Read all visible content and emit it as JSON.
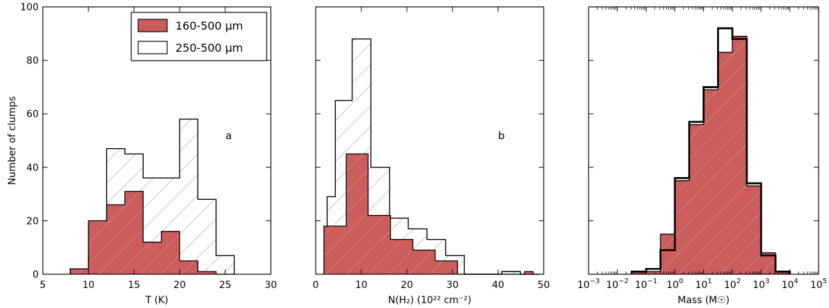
{
  "chart_data": [
    {
      "type": "histogram",
      "panel_label": "a",
      "xlabel": "T (K)",
      "ylabel": "Number of clumps",
      "xlim": [
        5,
        30
      ],
      "ylim": [
        0,
        100
      ],
      "xticks": [
        5,
        10,
        15,
        20,
        25,
        30
      ],
      "yticks": [
        0,
        20,
        40,
        60,
        80,
        100
      ],
      "legend": {
        "position": "top-right",
        "entries": [
          "160-500 μm",
          "250-500 μm"
        ]
      },
      "series": [
        {
          "name": "250-500 μm",
          "style": "hatched-outline",
          "bin_edges": [
            8,
            10,
            12,
            14,
            16,
            18,
            20,
            22,
            24,
            26
          ],
          "values": [
            2,
            7,
            47,
            45,
            36,
            36,
            58,
            28,
            7
          ]
        },
        {
          "name": "160-500 μm",
          "style": "filled",
          "color": "#cd5c5c",
          "bin_edges": [
            8,
            10,
            12,
            14,
            16,
            18,
            20,
            22,
            24,
            26
          ],
          "values": [
            2,
            20,
            26,
            31,
            12,
            16,
            5,
            1,
            0
          ]
        }
      ]
    },
    {
      "type": "histogram",
      "panel_label": "b",
      "xlabel": "N(H₂) (10²² cm⁻²)",
      "ylabel": "",
      "xlim": [
        0,
        50
      ],
      "ylim": [
        0,
        100
      ],
      "xticks": [
        0,
        10,
        20,
        30,
        40,
        50
      ],
      "series": [
        {
          "name": "250-500 μm",
          "style": "hatched-outline",
          "bin_edges": [
            2.5,
            4.3,
            8.0,
            12.1,
            16.2,
            20.3,
            24.4,
            28.5,
            32.6,
            36.7,
            40.8,
            44.9,
            49.0
          ],
          "values": [
            29,
            65,
            88,
            40,
            21,
            17,
            13,
            7,
            0,
            0,
            1,
            0
          ]
        },
        {
          "name": "160-500 μm",
          "style": "filled",
          "color": "#cd5c5c",
          "bin_edges": [
            1.8,
            6.7,
            11.5,
            16.4,
            21.3,
            26.2,
            31.1,
            36.0,
            40.9,
            45.8,
            47.7
          ],
          "values": [
            18,
            45,
            22,
            13,
            9,
            5,
            0,
            0,
            0,
            1
          ]
        }
      ]
    },
    {
      "type": "histogram",
      "panel_label": "",
      "xlabel": "Mass (M☉)",
      "ylabel": "",
      "xscale": "log",
      "xlim": [
        0.001,
        100000
      ],
      "ylim": [
        0,
        100
      ],
      "xtick_exponents": [
        -3,
        -2,
        -1,
        0,
        1,
        2,
        3,
        4,
        5
      ],
      "series": [
        {
          "name": "250-500 μm",
          "style": "thick-outline",
          "bin_edges_log10": [
            -1.5,
            -1.0,
            -0.5,
            0,
            0.5,
            1.0,
            1.5,
            2.0,
            2.5,
            3.0,
            3.5,
            4.0
          ],
          "values": [
            1,
            2,
            9,
            36,
            57,
            70,
            92,
            88,
            34,
            7,
            1
          ]
        },
        {
          "name": "160-500 μm",
          "style": "filled",
          "color": "#cd5c5c",
          "bin_edges_log10": [
            -1.5,
            -1.0,
            -0.5,
            0,
            0.5,
            1.0,
            1.5,
            2.0,
            2.5,
            3.0,
            3.5,
            4.0
          ],
          "values": [
            1,
            1,
            15,
            35,
            56,
            69,
            83,
            89,
            33,
            8,
            1
          ]
        }
      ]
    }
  ]
}
